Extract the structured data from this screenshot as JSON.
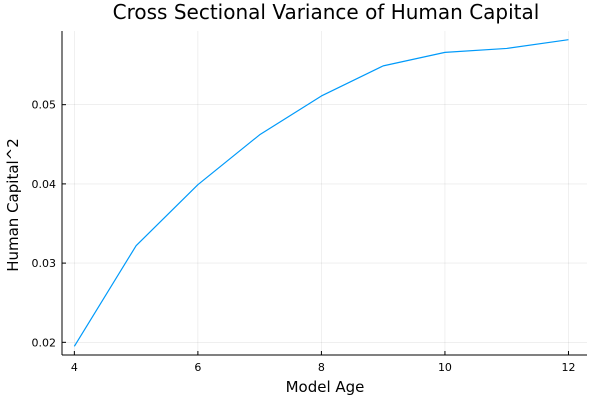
{
  "chart_data": {
    "type": "line",
    "title": "Cross Sectional Variance of Human Capital",
    "xlabel": "Model Age",
    "ylabel": "Human Capital^2",
    "xlim": [
      3.8,
      12.3
    ],
    "ylim": [
      0.0184,
      0.0593
    ],
    "xticks": [
      4,
      6,
      8,
      10,
      12
    ],
    "yticks": [
      0.02,
      0.03,
      0.04,
      0.05
    ],
    "xtick_labels": [
      "4",
      "6",
      "8",
      "10",
      "12"
    ],
    "ytick_labels": [
      "0.02",
      "0.03",
      "0.04",
      "0.05"
    ],
    "grid": true,
    "legend": false,
    "series": [
      {
        "color": "#009AFA",
        "x": [
          4,
          5,
          6,
          7,
          8,
          9,
          10,
          11,
          12
        ],
        "y": [
          0.0195,
          0.0322,
          0.0399,
          0.0462,
          0.0511,
          0.0549,
          0.0566,
          0.0571,
          0.0582
        ]
      }
    ]
  }
}
